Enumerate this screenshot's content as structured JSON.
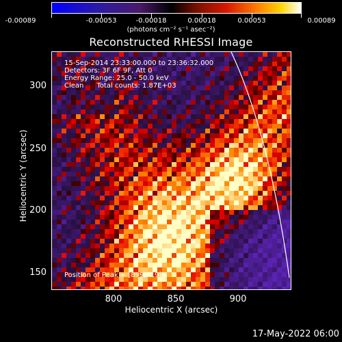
{
  "colorbar": {
    "ticks": [
      "-0.00089",
      "-0.00053",
      "-0.00018",
      "0.00018",
      "0.00053",
      "0.00089"
    ],
    "units": "(photons cm⁻² s⁻¹ asec⁻²)"
  },
  "title": "Reconstructed RHESSI Image",
  "info": {
    "time": "15-Sep-2014 23:33:00.000 to 23:36:32.000",
    "detectors": "Detectors: 3F 6F 9F, Att 0",
    "energy": "Energy Range: 25.0 - 50.0 keV",
    "clean": "Clean      Total counts: 1.87E+03",
    "peak": "Position of Peak = [899,219]"
  },
  "axes": {
    "xlabel": "Heliocentric X (arcsec)",
    "ylabel": "Heliocentric Y (arcsec)",
    "xticks": [
      "800",
      "850",
      "900"
    ],
    "yticks": [
      "300",
      "250",
      "200",
      "150"
    ]
  },
  "date": "17-May-2022 06:00"
}
